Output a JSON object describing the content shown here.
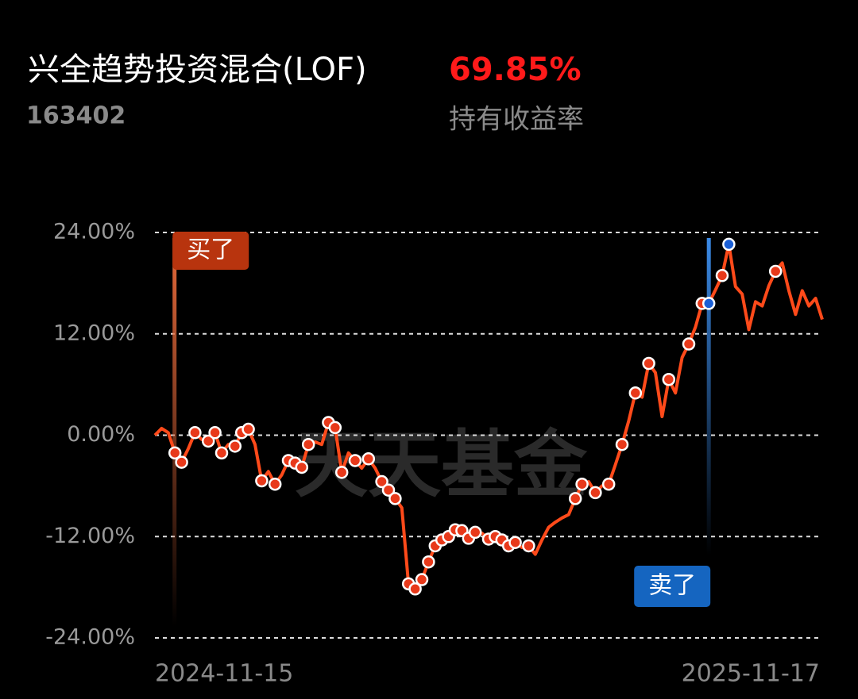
{
  "chart_data": {
    "type": "line",
    "title": "兴全趋势投资混合(LOF)",
    "code": "163402",
    "return_value": "69.85%",
    "return_label": "持有收益率",
    "buy_label": "买了",
    "sell_label": "卖了",
    "watermark": "天天基金",
    "ylim": [
      -24,
      24
    ],
    "yticks": [
      {
        "value": 24,
        "label": "24.00%"
      },
      {
        "value": 12,
        "label": "12.00%"
      },
      {
        "value": 0,
        "label": "0.00%"
      },
      {
        "value": -12,
        "label": "-12.00%"
      },
      {
        "value": -24,
        "label": "-24.00%"
      }
    ],
    "grid": true,
    "categories": [
      "2024-11-15",
      null,
      null,
      null,
      null,
      null,
      null,
      null,
      null,
      null,
      null,
      null,
      null,
      null,
      null,
      null,
      null,
      null,
      null,
      null,
      null,
      null,
      null,
      null,
      null,
      null,
      null,
      null,
      null,
      null,
      null,
      null,
      null,
      null,
      null,
      null,
      null,
      null,
      null,
      null,
      null,
      null,
      null,
      null,
      null,
      null,
      null,
      null,
      null,
      null,
      null,
      null,
      null,
      null,
      null,
      null,
      null,
      null,
      null,
      null,
      null,
      null,
      null,
      null,
      null,
      null,
      null,
      null,
      null,
      null,
      null,
      null,
      null,
      null,
      null,
      null,
      null,
      null,
      null,
      null,
      null,
      null,
      null,
      null,
      null,
      null,
      null,
      null,
      null,
      null,
      null,
      null,
      null,
      null,
      null,
      null,
      null,
      null,
      null,
      null,
      "2025-11-17"
    ],
    "series": [
      {
        "color": "#ff4a1a",
        "values": [
          0,
          0.8,
          0.3,
          -2.1,
          -3.2,
          -1.6,
          0.3,
          -0.5,
          -0.7,
          0.3,
          -2.1,
          -1.1,
          -1.3,
          0.3,
          0.7,
          -1.1,
          -5.4,
          -4.3,
          -5.8,
          -4.7,
          -3.0,
          -3.3,
          -3.8,
          -1.1,
          -0.8,
          -1.1,
          1.5,
          0.9,
          -4.4,
          -2.1,
          -3.0,
          -3.9,
          -2.8,
          -3.9,
          -5.5,
          -6.5,
          -7.5,
          -8.6,
          -17.6,
          -18.2,
          -17.1,
          -15.0,
          -13.1,
          -12.4,
          -12.0,
          -11.2,
          -11.3,
          -12.2,
          -11.5,
          -11.6,
          -12.3,
          -12.0,
          -12.4,
          -13.1,
          -12.7,
          -13.3,
          -13.1,
          -14.1,
          -12.4,
          -10.9,
          -10.3,
          -9.8,
          -9.4,
          -7.5,
          -5.8,
          -5.5,
          -6.8,
          -6.0,
          -5.8,
          -3.5,
          -1.1,
          1.7,
          5.0,
          4.5,
          8.5,
          7.4,
          2.2,
          6.6,
          5.0,
          9.2,
          10.8,
          12.8,
          15.6,
          15.6,
          17.2,
          18.9,
          22.6,
          17.6,
          16.7,
          12.5,
          15.8,
          15.3,
          17.7,
          19.4,
          20.4,
          17.1,
          14.3,
          17.1,
          15.3,
          16.2,
          13.7
        ]
      },
      {
        "color": "#e8391a",
        "values": [
          null,
          null,
          null,
          -2.1,
          -3.2,
          null,
          0.3,
          null,
          -0.7,
          0.3,
          -2.1,
          null,
          -1.3,
          0.3,
          0.7,
          null,
          -5.4,
          null,
          -5.8,
          null,
          -3.0,
          -3.3,
          -3.8,
          -1.1,
          null,
          null,
          1.5,
          0.9,
          -4.4,
          null,
          -3.0,
          null,
          -2.8,
          null,
          -5.5,
          -6.5,
          -7.5,
          null,
          -17.6,
          -18.2,
          -17.1,
          -15.0,
          -13.1,
          -12.4,
          -12.0,
          -11.2,
          -11.3,
          -12.2,
          -11.5,
          null,
          -12.3,
          -12.0,
          -12.4,
          -13.1,
          -12.7,
          null,
          -13.1,
          null,
          null,
          null,
          null,
          null,
          null,
          -7.5,
          -5.8,
          null,
          -6.8,
          null,
          -5.8,
          null,
          -1.1,
          null,
          5.0,
          null,
          8.5,
          null,
          null,
          6.6,
          null,
          null,
          10.8,
          null,
          15.6,
          null,
          null,
          18.9,
          null,
          null,
          null,
          null,
          null,
          null,
          null,
          19.4,
          null,
          null,
          null,
          null,
          null,
          null,
          null
        ]
      },
      {
        "color": "#1a5fd6",
        "values": [
          null,
          null,
          null,
          null,
          null,
          null,
          null,
          null,
          null,
          null,
          null,
          null,
          null,
          null,
          null,
          null,
          null,
          null,
          null,
          null,
          null,
          null,
          null,
          null,
          null,
          null,
          null,
          null,
          null,
          null,
          null,
          null,
          null,
          null,
          null,
          null,
          null,
          null,
          null,
          null,
          null,
          null,
          null,
          null,
          null,
          null,
          null,
          null,
          null,
          null,
          null,
          null,
          null,
          null,
          null,
          null,
          null,
          null,
          null,
          null,
          null,
          null,
          null,
          null,
          null,
          null,
          null,
          null,
          null,
          null,
          null,
          null,
          null,
          null,
          null,
          null,
          null,
          null,
          null,
          null,
          null,
          null,
          null,
          15.6,
          null,
          null,
          22.6,
          null,
          null,
          null,
          null,
          null,
          null,
          null,
          null,
          null,
          null,
          null,
          null,
          null,
          null
        ]
      }
    ]
  }
}
